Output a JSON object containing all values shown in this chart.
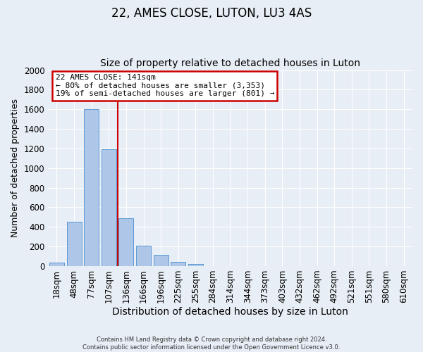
{
  "title": "22, AMES CLOSE, LUTON, LU3 4AS",
  "subtitle": "Size of property relative to detached houses in Luton",
  "xlabel": "Distribution of detached houses by size in Luton",
  "ylabel": "Number of detached properties",
  "bar_labels": [
    "18sqm",
    "48sqm",
    "77sqm",
    "107sqm",
    "136sqm",
    "166sqm",
    "196sqm",
    "225sqm",
    "255sqm",
    "284sqm",
    "314sqm",
    "344sqm",
    "373sqm",
    "403sqm",
    "432sqm",
    "462sqm",
    "492sqm",
    "521sqm",
    "551sqm",
    "580sqm",
    "610sqm"
  ],
  "bar_values": [
    35,
    455,
    1600,
    1195,
    485,
    210,
    115,
    45,
    20,
    0,
    0,
    0,
    0,
    0,
    0,
    0,
    0,
    0,
    0,
    0,
    0
  ],
  "bar_color": "#aec6e8",
  "bar_edge_color": "#5b9bd5",
  "background_color": "#e8eef5",
  "grid_color": "#ffffff",
  "vline_color": "#cc0000",
  "annotation_title": "22 AMES CLOSE: 141sqm",
  "annotation_line1": "← 80% of detached houses are smaller (3,353)",
  "annotation_line2": "19% of semi-detached houses are larger (801) →",
  "annotation_box_color": "#ffffff",
  "annotation_box_edge": "#cc0000",
  "ylim": [
    0,
    2000
  ],
  "yticks": [
    0,
    200,
    400,
    600,
    800,
    1000,
    1200,
    1400,
    1600,
    1800,
    2000
  ],
  "footer_line1": "Contains HM Land Registry data © Crown copyright and database right 2024.",
  "footer_line2": "Contains public sector information licensed under the Open Government Licence v3.0.",
  "title_fontsize": 12,
  "subtitle_fontsize": 10,
  "xlabel_fontsize": 10,
  "ylabel_fontsize": 9
}
